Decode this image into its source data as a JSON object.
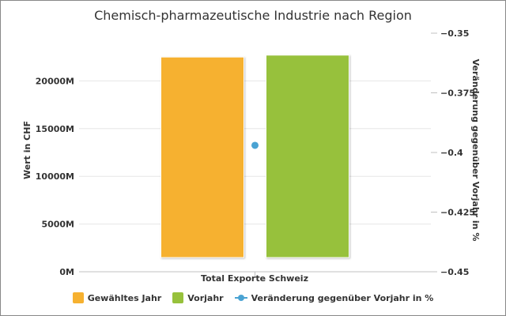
{
  "chart_data": {
    "type": "bar",
    "title": "Chemisch-pharmazeutische Industrie nach Region",
    "categories": [
      "Total Exporte Schweiz"
    ],
    "ylabel_left": "Wert in CHF",
    "ylabel_right": "Veränderung gegenüber Vorjahr in %",
    "left_axis": {
      "min": 0,
      "max": 25000,
      "ticks": [
        0,
        5000,
        10000,
        15000,
        20000
      ],
      "tick_labels": [
        "0M",
        "5000M",
        "10000M",
        "15000M",
        "20000M"
      ]
    },
    "right_axis": {
      "min": -0.45,
      "max": -0.35,
      "ticks": [
        -0.45,
        -0.425,
        -0.4,
        -0.375,
        -0.35
      ],
      "tick_labels": [
        "−0.45",
        "−0.425",
        "−0.4",
        "−0.375",
        "−0.35"
      ]
    },
    "series": [
      {
        "name": "Gewähltes Jahr",
        "type": "bar",
        "axis": "left",
        "values": [
          22500
        ],
        "color": "#f6b130"
      },
      {
        "name": "Vorjahr",
        "type": "bar",
        "axis": "left",
        "values": [
          22700
        ],
        "color": "#97c13c"
      },
      {
        "name": "Veränderung gegenüber Vorjahr in %",
        "type": "line",
        "axis": "right",
        "values": [
          -0.397
        ],
        "color": "#4aa3d3"
      }
    ],
    "grid": true,
    "legend_position": "bottom"
  }
}
